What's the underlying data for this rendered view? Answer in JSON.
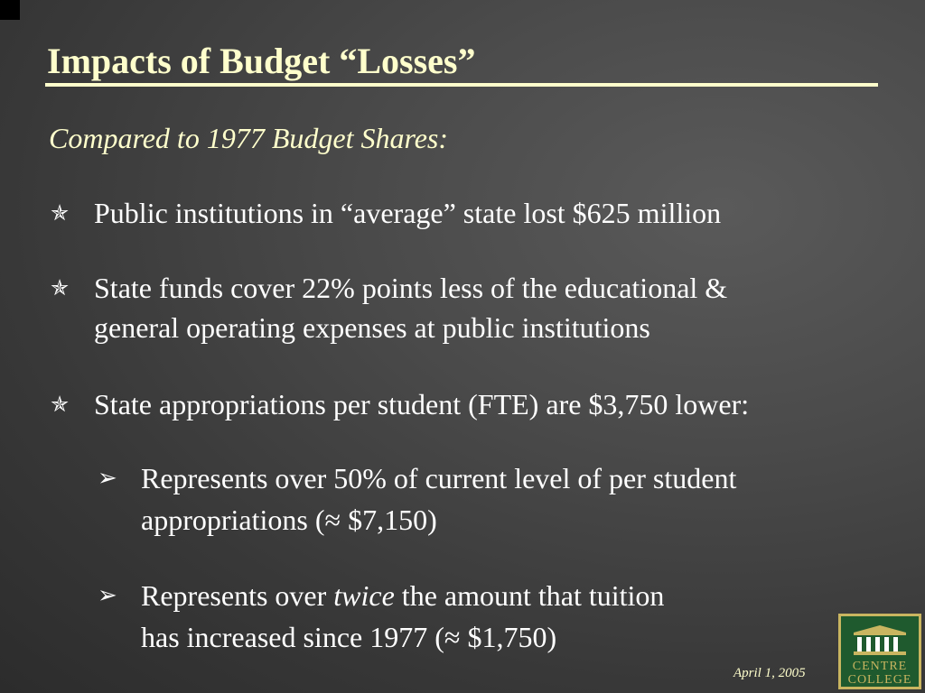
{
  "slide": {
    "title": "Impacts of Budget “Losses”",
    "subtitle": "Compared to 1977 Budget Shares:",
    "bullets": [
      {
        "mark": "✯",
        "lines": [
          "Public institutions in “average” state lost $625 million"
        ]
      },
      {
        "mark": "✯",
        "lines": [
          "State funds cover 22% points less of the educational &",
          "general operating expenses at public institutions"
        ]
      },
      {
        "mark": "✯",
        "lines": [
          "State appropriations per student (FTE) are $3,750 lower:"
        ]
      }
    ],
    "subbullets": [
      {
        "mark": "➢",
        "line1": "Represents over 50% of current level of per student",
        "line2": "appropriations (≈ $7,150)"
      },
      {
        "mark": "➢",
        "line1_before": "Represents over ",
        "line1_emph": "twice",
        "line1_after": " the amount that tuition",
        "line2": "has increased since 1977 (≈ $1,750)"
      }
    ],
    "date": "April 1, 2005"
  },
  "logo": {
    "line1": "CENTRE",
    "line2": "COLLEGE",
    "bg_color": "#1f5a2e",
    "accent_color": "#c9b560"
  }
}
